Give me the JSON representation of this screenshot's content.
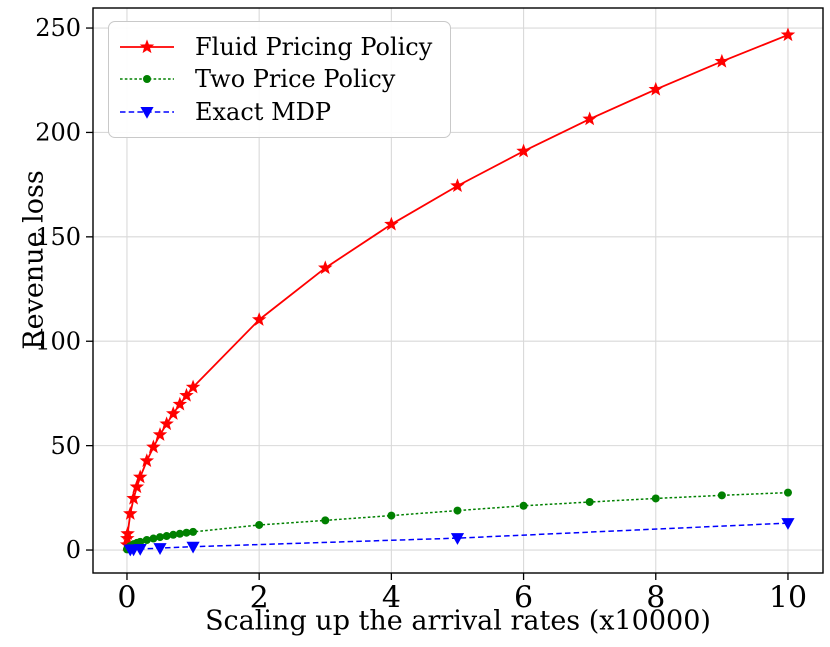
{
  "chart_data": {
    "type": "line",
    "title": "",
    "xlabel": "Scaling up the arrival rates (x10000)",
    "ylabel": "Revenue loss",
    "xlim": [
      -0.514,
      10.53
    ],
    "ylim": [
      -11,
      259.6
    ],
    "xticks": [
      0,
      2,
      4,
      6,
      8,
      10
    ],
    "yticks": [
      0,
      50,
      100,
      150,
      200,
      250
    ],
    "grid": true,
    "grid_color": "#d9d9d9",
    "legend_position": "upper-left",
    "series": [
      {
        "name": "Fluid Pricing Policy",
        "color": "#ff0000",
        "line": "solid",
        "marker": "star",
        "x": [
          0.001,
          0.005,
          0.01,
          0.05,
          0.1,
          0.15,
          0.2,
          0.3,
          0.4,
          0.5,
          0.6,
          0.7,
          0.8,
          0.9,
          1,
          2,
          3,
          4,
          5,
          6,
          7,
          8,
          9,
          10
        ],
        "y": [
          2.5,
          5.5,
          7.8,
          17.4,
          24.7,
          30.2,
          34.9,
          42.7,
          49.3,
          55.2,
          60.4,
          65.3,
          69.8,
          74.0,
          78.0,
          110.3,
          135.1,
          156.0,
          174.4,
          191.0,
          206.4,
          220.6,
          234.0,
          246.7
        ]
      },
      {
        "name": "Two Price Policy",
        "color": "#008000",
        "line": "short-dash",
        "marker": "circle",
        "x": [
          0.001,
          0.005,
          0.01,
          0.05,
          0.1,
          0.15,
          0.2,
          0.3,
          0.4,
          0.5,
          0.6,
          0.7,
          0.8,
          0.9,
          1,
          2,
          3,
          4,
          5,
          6,
          7,
          8,
          9,
          10
        ],
        "y": [
          0.3,
          0.6,
          0.9,
          1.9,
          2.8,
          3.4,
          3.9,
          4.8,
          5.5,
          6.2,
          6.7,
          7.3,
          7.8,
          8.3,
          8.7,
          12.0,
          14.2,
          16.5,
          18.9,
          21.2,
          23.0,
          24.7,
          26.2,
          27.5
        ]
      },
      {
        "name": "Exact MDP",
        "color": "#0000ff",
        "line": "dash",
        "marker": "triangle-down",
        "x": [
          0.05,
          0.1,
          0.2,
          0.5,
          1,
          5,
          10
        ],
        "y": [
          0.2,
          0.3,
          0.5,
          0.9,
          1.6,
          5.7,
          12.9
        ]
      }
    ]
  }
}
